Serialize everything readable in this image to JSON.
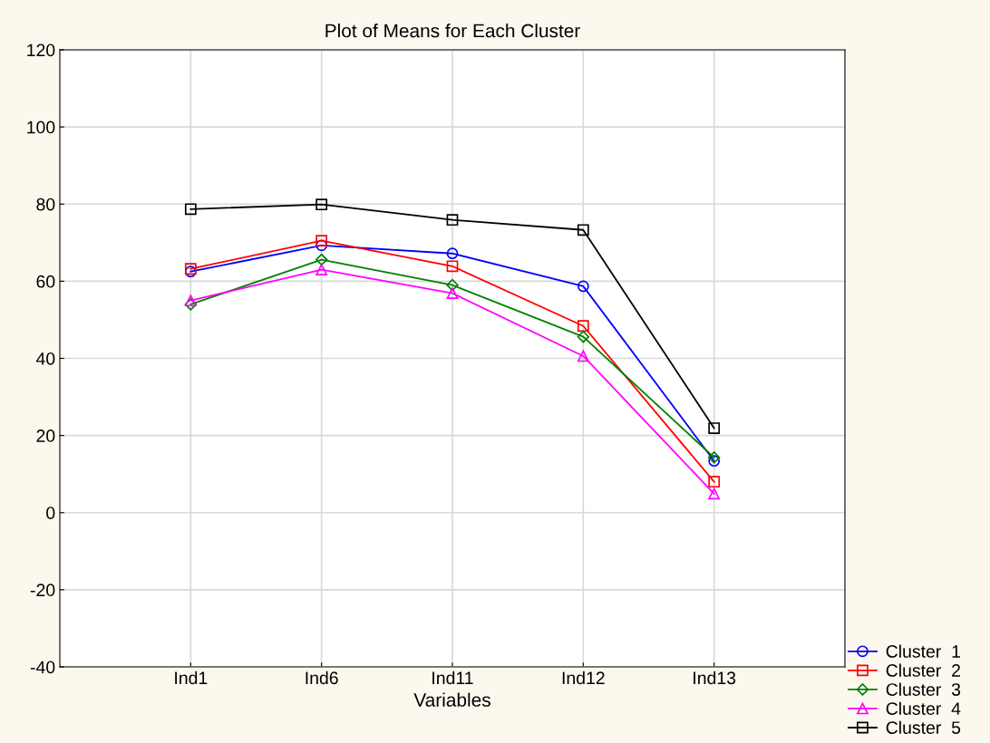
{
  "chart_data": {
    "type": "line",
    "title": "Plot of Means for Each Cluster",
    "xlabel": "Variables",
    "categories": [
      "Ind1",
      "Ind6",
      "Ind11",
      "Ind12",
      "Ind13"
    ],
    "series": [
      {
        "name": "Cluster  1",
        "color": "#0000ff",
        "marker": "circle",
        "values": [
          62.5,
          69.3,
          67.2,
          58.7,
          13.4
        ]
      },
      {
        "name": "Cluster  2",
        "color": "#ff0000",
        "marker": "square",
        "values": [
          63.2,
          70.5,
          63.9,
          48.4,
          8.0
        ]
      },
      {
        "name": "Cluster  3",
        "color": "#008000",
        "marker": "diamond",
        "values": [
          54.0,
          65.6,
          59.0,
          45.6,
          14.3
        ]
      },
      {
        "name": "Cluster  4",
        "color": "#ff00ff",
        "marker": "triangle",
        "values": [
          55.0,
          63.0,
          56.9,
          40.6,
          4.9
        ]
      },
      {
        "name": "Cluster  5",
        "color": "#000000",
        "marker": "square",
        "values": [
          78.7,
          79.9,
          75.9,
          73.3,
          21.9
        ]
      }
    ],
    "ylim": [
      -40,
      120
    ],
    "yticks": [
      -40,
      -20,
      0,
      20,
      40,
      60,
      80,
      100,
      120
    ],
    "grid": true,
    "legend": "bottom right"
  }
}
